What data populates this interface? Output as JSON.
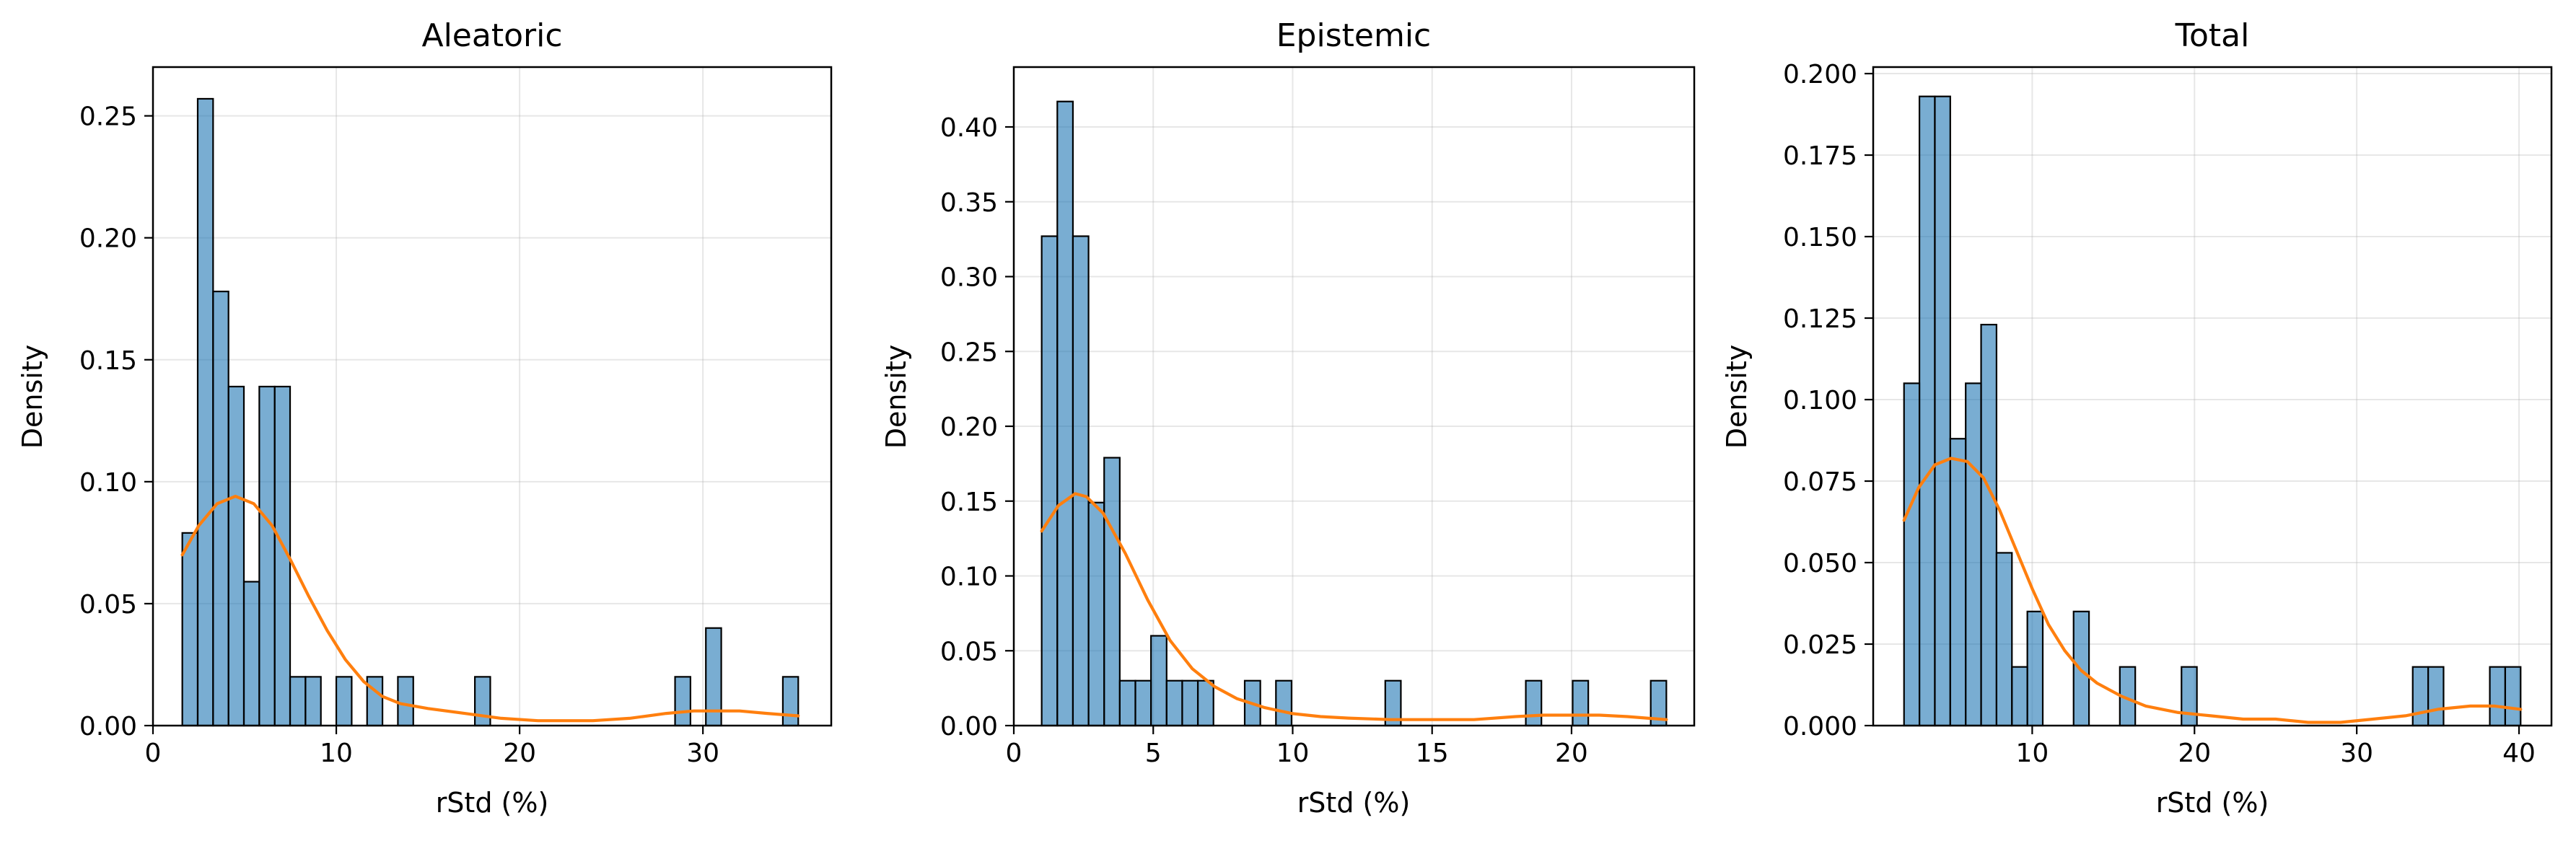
{
  "figure": {
    "background": "#ffffff",
    "bar_color": "#1f77b4",
    "bar_opacity": 0.6,
    "bar_edge_color": "#000000",
    "kde_color": "#ff7f0e",
    "grid_color": "#b0b0b0"
  },
  "chart_data": [
    {
      "type": "bar",
      "title": "Aleatoric",
      "xlabel": "rStd (%)",
      "ylabel": "Density",
      "xlim": [
        0,
        37
      ],
      "ylim": [
        0,
        0.27
      ],
      "xticks": [
        0,
        10,
        20,
        30
      ],
      "yticks": [
        0.0,
        0.05,
        0.1,
        0.15,
        0.2,
        0.25
      ],
      "ytick_decimals": 2,
      "grid": true,
      "bin_edges": [
        1.6,
        2.44,
        3.28,
        4.12,
        4.96,
        5.8,
        6.64,
        7.48,
        8.32,
        9.16,
        10.0,
        10.84,
        11.68,
        12.52,
        13.36,
        14.2,
        15.04,
        15.88,
        16.72,
        17.56,
        18.4,
        19.24,
        20.08,
        20.92,
        21.76,
        22.6,
        23.44,
        24.28,
        25.12,
        25.96,
        26.8,
        27.64,
        28.48,
        29.32,
        30.16,
        31.0,
        31.84,
        32.68,
        33.52,
        34.36,
        35.2
      ],
      "densities": [
        0.079,
        0.257,
        0.178,
        0.139,
        0.059,
        0.139,
        0.139,
        0.02,
        0.02,
        0,
        0.02,
        0,
        0.02,
        0,
        0.02,
        0,
        0,
        0,
        0,
        0.02,
        0,
        0,
        0,
        0,
        0,
        0,
        0,
        0,
        0,
        0,
        0,
        0,
        0.02,
        0,
        0.04,
        0,
        0,
        0,
        0,
        0.02
      ],
      "kde": {
        "x": [
          1.6,
          2.5,
          3.5,
          4.5,
          5.5,
          6.5,
          7.5,
          8.5,
          9.5,
          10.5,
          11.5,
          12.5,
          13.5,
          15,
          17,
          19,
          21,
          22.5,
          24,
          26,
          28,
          29.5,
          30.5,
          32,
          33.5,
          35.2
        ],
        "y": [
          0.07,
          0.082,
          0.091,
          0.094,
          0.091,
          0.082,
          0.068,
          0.053,
          0.039,
          0.027,
          0.018,
          0.012,
          0.009,
          0.007,
          0.005,
          0.003,
          0.002,
          0.002,
          0.002,
          0.003,
          0.005,
          0.006,
          0.006,
          0.006,
          0.005,
          0.004
        ]
      }
    },
    {
      "type": "bar",
      "title": "Epistemic",
      "xlabel": "rStd (%)",
      "ylabel": "Density",
      "xlim": [
        0,
        24.4
      ],
      "ylim": [
        0,
        0.44
      ],
      "xticks": [
        0,
        5,
        10,
        15,
        20
      ],
      "yticks": [
        0.0,
        0.05,
        0.1,
        0.15,
        0.2,
        0.25,
        0.3,
        0.35,
        0.4
      ],
      "ytick_decimals": 2,
      "grid": true,
      "bin_edges": [
        1.0,
        1.56,
        2.12,
        2.68,
        3.24,
        3.8,
        4.36,
        4.92,
        5.48,
        6.04,
        6.6,
        7.16,
        7.72,
        8.28,
        8.84,
        9.4,
        9.96,
        10.52,
        11.08,
        11.64,
        12.2,
        12.76,
        13.32,
        13.88,
        14.44,
        15.0,
        15.56,
        16.12,
        16.68,
        17.24,
        17.8,
        18.36,
        18.92,
        19.48,
        20.04,
        20.6,
        21.16,
        21.72,
        22.28,
        22.84,
        23.4
      ],
      "densities": [
        0.327,
        0.417,
        0.327,
        0.149,
        0.179,
        0.03,
        0.03,
        0.06,
        0.03,
        0.03,
        0.03,
        0,
        0,
        0.03,
        0,
        0.03,
        0,
        0,
        0,
        0,
        0,
        0,
        0.03,
        0,
        0,
        0,
        0,
        0,
        0,
        0,
        0,
        0.03,
        0,
        0,
        0.03,
        0,
        0,
        0,
        0,
        0.03
      ],
      "kde": {
        "x": [
          1.0,
          1.6,
          2.2,
          2.6,
          3.2,
          4.0,
          4.8,
          5.6,
          6.4,
          7.2,
          8.0,
          9.0,
          10.0,
          11.0,
          12.0,
          13.5,
          15.0,
          16.5,
          18.0,
          19.0,
          20.0,
          21.0,
          22.0,
          23.4
        ],
        "y": [
          0.13,
          0.147,
          0.155,
          0.153,
          0.142,
          0.115,
          0.084,
          0.057,
          0.038,
          0.026,
          0.018,
          0.012,
          0.008,
          0.006,
          0.005,
          0.004,
          0.004,
          0.004,
          0.006,
          0.007,
          0.007,
          0.007,
          0.006,
          0.004
        ]
      }
    },
    {
      "type": "bar",
      "title": "Total",
      "xlabel": "rStd (%)",
      "ylabel": "Density",
      "xlim": [
        0.2,
        42.0
      ],
      "ylim": [
        0,
        0.202
      ],
      "xticks": [
        10,
        20,
        30,
        40
      ],
      "yticks": [
        0.0,
        0.025,
        0.05,
        0.075,
        0.1,
        0.125,
        0.15,
        0.175,
        0.2
      ],
      "ytick_decimals": 3,
      "grid": true,
      "bin_edges": [
        2.1,
        3.05,
        4.0,
        4.95,
        5.9,
        6.85,
        7.8,
        8.75,
        9.7,
        10.65,
        11.6,
        12.55,
        13.5,
        14.45,
        15.4,
        16.35,
        17.3,
        18.25,
        19.2,
        20.15,
        21.1,
        22.05,
        23.0,
        23.95,
        24.9,
        25.85,
        26.8,
        27.75,
        28.7,
        29.65,
        30.6,
        31.55,
        32.5,
        33.45,
        34.4,
        35.35,
        36.3,
        37.25,
        38.2,
        39.15,
        40.1
      ],
      "densities": [
        0.105,
        0.193,
        0.193,
        0.088,
        0.105,
        0.123,
        0.053,
        0.018,
        0.035,
        0,
        0,
        0.035,
        0,
        0,
        0.018,
        0,
        0,
        0,
        0.018,
        0,
        0,
        0,
        0,
        0,
        0,
        0,
        0,
        0,
        0,
        0,
        0,
        0,
        0,
        0.018,
        0.018,
        0,
        0,
        0,
        0.018,
        0.018
      ],
      "kde": {
        "x": [
          2.1,
          3.0,
          4.0,
          5.0,
          6.0,
          7.0,
          8.0,
          9.0,
          10.0,
          11.0,
          12.0,
          13.0,
          14.0,
          15.5,
          17.0,
          19.0,
          21.0,
          23.0,
          25.0,
          27.0,
          29.0,
          31.0,
          33.0,
          35.0,
          37.0,
          38.5,
          40.1
        ],
        "y": [
          0.063,
          0.073,
          0.08,
          0.082,
          0.081,
          0.076,
          0.066,
          0.054,
          0.042,
          0.031,
          0.023,
          0.017,
          0.013,
          0.009,
          0.006,
          0.004,
          0.003,
          0.002,
          0.002,
          0.001,
          0.001,
          0.002,
          0.003,
          0.005,
          0.006,
          0.006,
          0.005
        ]
      }
    }
  ]
}
